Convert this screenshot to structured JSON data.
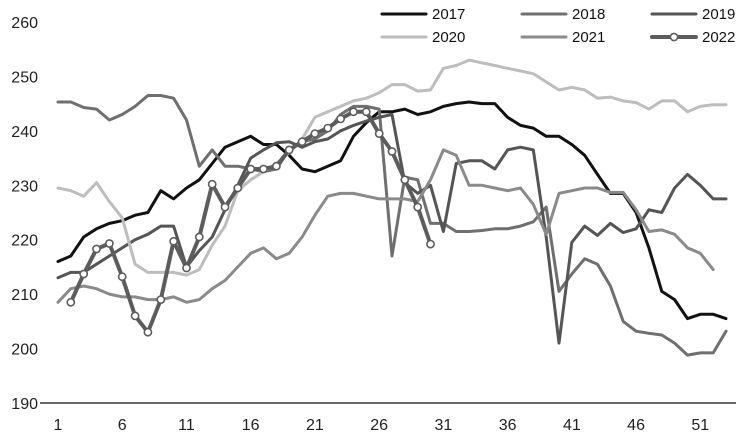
{
  "chart_data": {
    "type": "line",
    "title": "",
    "xlabel": "",
    "ylabel": "",
    "ylim": [
      190,
      260
    ],
    "xlim": [
      1,
      53
    ],
    "yticks": [
      190,
      200,
      210,
      220,
      230,
      240,
      250,
      260
    ],
    "xticks": [
      1,
      6,
      11,
      16,
      21,
      26,
      31,
      36,
      41,
      46,
      51
    ],
    "grid": false,
    "legend_position": "top",
    "series": [
      {
        "name": "2017",
        "color": "#111111",
        "markers": false,
        "start_week": 1,
        "values": [
          216,
          217,
          220.5,
          222,
          223,
          223.5,
          224.5,
          225,
          229,
          227.5,
          229.5,
          231,
          234,
          237,
          238,
          239,
          237.5,
          237.5,
          235.5,
          233,
          232.5,
          233.5,
          234.5,
          239,
          241.5,
          243.5,
          243.5,
          244,
          243,
          243.5,
          244.5,
          245,
          245.3,
          245,
          245,
          242.5,
          241,
          240.5,
          239,
          239,
          237.5,
          235.5,
          232,
          228.5,
          228.5,
          225,
          218.5,
          210.5,
          209,
          205.5,
          206.3,
          206.3,
          205.5
        ]
      },
      {
        "name": "2018",
        "color": "#6f6f6f",
        "markers": false,
        "start_week": 1,
        "values": [
          245.3,
          245.3,
          244.3,
          244,
          242,
          243,
          244.5,
          246.5,
          246.5,
          246,
          242,
          233.5,
          236.5,
          233.5,
          233.5,
          233,
          232.5,
          233,
          236.5,
          238,
          238.5,
          240,
          243,
          244.5,
          244.5,
          244,
          217,
          231.5,
          231,
          223,
          223,
          221.5,
          221.5,
          221.7,
          222,
          222,
          222.5,
          223.3,
          226,
          210.5,
          213.7,
          216.5,
          215.5,
          211.5,
          205,
          203.2,
          202.8,
          202.5,
          201,
          198.8,
          199.2,
          199.2,
          203.2
        ]
      },
      {
        "name": "2019",
        "color": "#555555",
        "markers": false,
        "start_week": 1,
        "values": [
          213,
          214,
          214,
          215.5,
          217,
          218.5,
          220,
          221,
          222.5,
          222.5,
          215,
          218,
          220.5,
          225.5,
          230,
          235,
          236.5,
          237.8,
          238,
          237,
          238,
          238.5,
          240,
          241,
          241.8,
          242.5,
          243,
          230.5,
          228.5,
          230,
          221.5,
          234,
          234.5,
          234.5,
          233,
          236.5,
          237,
          236.5,
          220.5,
          201,
          219.5,
          222.5,
          220.8,
          223,
          221.3,
          222,
          225.5,
          225,
          229.5,
          232,
          230,
          227.5,
          227.5
        ]
      },
      {
        "name": "2020",
        "color": "#bdbdbd",
        "markers": false,
        "start_week": 1,
        "values": [
          229.5,
          229,
          228,
          230.5,
          227,
          224,
          215.5,
          214,
          214,
          214,
          213.5,
          214.5,
          219,
          222.5,
          229,
          231,
          232.5,
          234,
          236,
          238.5,
          242.5,
          243.5,
          244.5,
          245.5,
          246,
          247,
          248.5,
          248.5,
          247.3,
          247.5,
          251.5,
          252,
          253,
          252.5,
          252,
          251.5,
          251,
          250.5,
          249,
          247.5,
          248,
          247.5,
          246,
          246.2,
          245.5,
          245.2,
          244,
          245.5,
          245.5,
          243.5,
          244.5,
          244.8,
          244.8
        ]
      },
      {
        "name": "2021",
        "color": "#8a8a8a",
        "markers": false,
        "start_week": 1,
        "values": [
          208.5,
          211,
          211.5,
          211,
          210,
          209.5,
          209.5,
          209,
          209,
          209.5,
          208.5,
          209,
          211,
          212.5,
          215,
          217.5,
          218.5,
          216.5,
          217.5,
          220.5,
          224.5,
          228,
          228.5,
          228.5,
          228,
          227.5,
          227.5,
          227.5,
          227,
          231,
          236.5,
          235.5,
          230,
          230,
          229.5,
          229,
          229.5,
          226.5,
          221,
          228.5,
          229,
          229.5,
          229.5,
          228.7,
          228.7,
          225.5,
          221.5,
          221.8,
          221,
          218.5,
          217.5,
          214.5
        ]
      },
      {
        "name": "2022",
        "color": "#5c5c5c",
        "markers": true,
        "start_week": 2,
        "values": [
          208.5,
          213.7,
          218.3,
          219.3,
          213.2,
          206,
          203,
          209,
          219.7,
          214.8,
          220.5,
          230.2,
          226,
          229.5,
          233,
          233,
          233.5,
          236.5,
          238,
          239.5,
          240.5,
          242.2,
          243.5,
          243.5,
          239.5,
          236.2,
          231,
          226,
          219.2
        ]
      }
    ]
  }
}
